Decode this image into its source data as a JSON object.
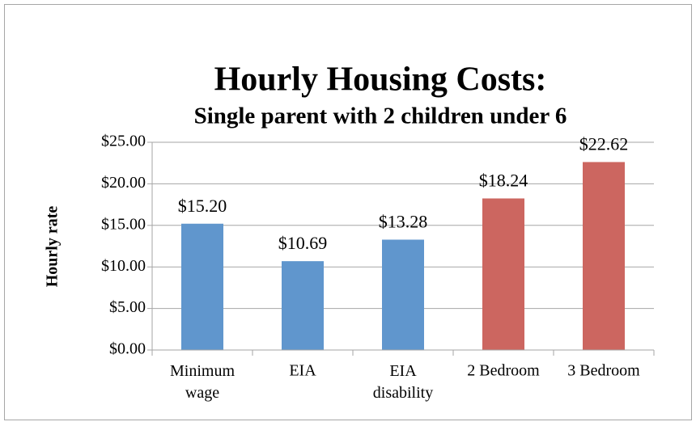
{
  "chart_data": {
    "type": "bar",
    "title": "Hourly Housing Costs:",
    "subtitle": "Single parent with 2 children under 6",
    "y_label": "Hourly rate",
    "categories": [
      "Minimum wage",
      "EIA",
      "EIA disability",
      "2 Bedroom",
      "3 Bedroom"
    ],
    "values": [
      15.2,
      10.69,
      13.28,
      18.24,
      22.62
    ],
    "value_labels": [
      "$15.20",
      "$10.69",
      "$13.28",
      "$18.24",
      "$22.62"
    ],
    "colors": [
      "#6096cd",
      "#6096cd",
      "#6096cd",
      "#cc6660",
      "#cc6660"
    ],
    "ylim": [
      0,
      25
    ],
    "yticks": [
      {
        "value": 0,
        "label": "$0.00"
      },
      {
        "value": 5,
        "label": "$5.00"
      },
      {
        "value": 10,
        "label": "$10.00"
      },
      {
        "value": 15,
        "label": "$15.00"
      },
      {
        "value": 20,
        "label": "$20.00"
      },
      {
        "value": 25,
        "label": "$25.00"
      }
    ],
    "grid": true
  }
}
